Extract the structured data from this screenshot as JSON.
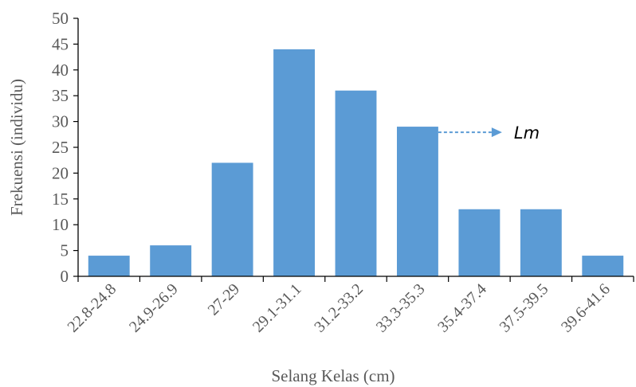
{
  "chart_data": {
    "type": "bar",
    "categories": [
      "22.8-24.8",
      "24.9-26.9",
      "27-29",
      "29.1-31.1",
      "31.2-33.2",
      "33.3-35.3",
      "35.4-37.4",
      "37.5-39.5",
      "39.6-41.6"
    ],
    "values": [
      4,
      6,
      22,
      44,
      36,
      29,
      13,
      13,
      4
    ],
    "title": "",
    "xlabel": "Selang Kelas (cm)",
    "ylabel": "Frekuensi (individu)",
    "ylim": [
      0,
      50
    ],
    "yticks": [
      0,
      5,
      10,
      15,
      20,
      25,
      30,
      35,
      40,
      45,
      50
    ],
    "grid": false,
    "legend": "none",
    "bar_color": "#5B9BD5",
    "annotation": {
      "text": "Lm",
      "category": "33.3-35.3",
      "value": 29,
      "style": "dashed-arrow",
      "color": "#5B9BD5"
    }
  }
}
